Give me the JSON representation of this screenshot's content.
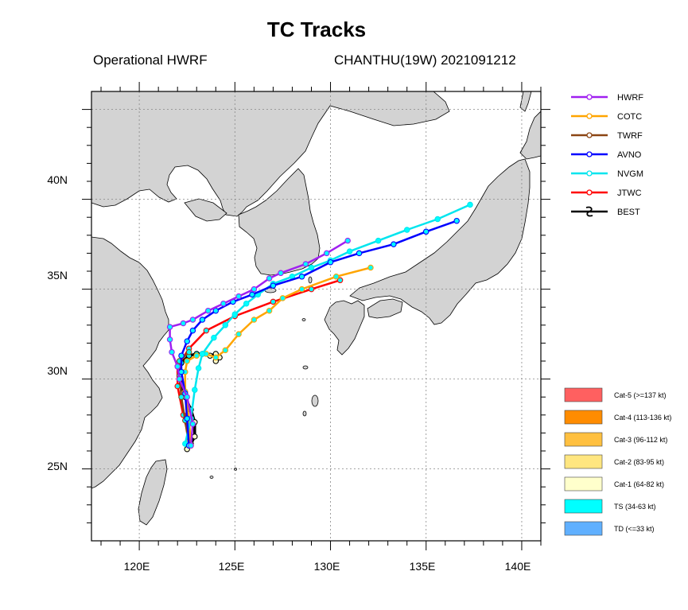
{
  "title": "TC Tracks",
  "subtitle_left": "Operational HWRF",
  "subtitle_right": "CHANTHU(19W) 2021091212",
  "map": {
    "lon_range": [
      117.5,
      141.0
    ],
    "lat_range": [
      21.0,
      46.0
    ],
    "x_tick_labels": [
      "120E",
      "125E",
      "130E",
      "135E",
      "140E"
    ],
    "y_tick_labels": [
      "25N",
      "30N",
      "35N",
      "40N"
    ],
    "grid": "dotted",
    "land_color": "#d3d3d3",
    "ocean_color": "#ffffff"
  },
  "legend": {
    "placement": "top-right",
    "tracks": [
      {
        "name": "HWRF",
        "color": "#a020f0"
      },
      {
        "name": "COTC",
        "color": "#ffa500"
      },
      {
        "name": "TWRF",
        "color": "#8b4513"
      },
      {
        "name": "AVNO",
        "color": "#0000ff"
      },
      {
        "name": "NVGM",
        "color": "#00e5ee"
      },
      {
        "name": "JTWC",
        "color": "#ff0000"
      },
      {
        "name": "BEST",
        "color": "#000000"
      }
    ]
  },
  "intensity_legend": [
    {
      "label": "Cat-5 (>=137 kt)",
      "color": "#ff6060"
    },
    {
      "label": "Cat-4 (113-136 kt)",
      "color": "#ff8c00"
    },
    {
      "label": "Cat-3 (96-112 kt)",
      "color": "#ffc040"
    },
    {
      "label": "Cat-2 (83-95 kt)",
      "color": "#ffe680"
    },
    {
      "label": "Cat-1 (64-82 kt)",
      "color": "#ffffcc"
    },
    {
      "label": "TS (34-63 kt)",
      "color": "#00ffff"
    },
    {
      "label": "TD (<=33 kt)",
      "color": "#60b0ff"
    }
  ],
  "tracks": {
    "HWRF": [
      [
        122.7,
        26.3
      ],
      [
        122.8,
        27.5
      ],
      [
        122.5,
        29.0
      ],
      [
        122.1,
        30.0
      ],
      [
        122.0,
        30.7
      ],
      [
        121.7,
        31.5
      ],
      [
        121.6,
        32.2
      ],
      [
        121.6,
        32.9
      ],
      [
        122.3,
        33.1
      ],
      [
        122.8,
        33.3
      ],
      [
        123.6,
        33.8
      ],
      [
        124.4,
        34.2
      ],
      [
        125.2,
        34.6
      ],
      [
        126.0,
        35.0
      ],
      [
        126.8,
        35.6
      ],
      [
        127.4,
        35.9
      ],
      [
        128.7,
        36.4
      ],
      [
        129.8,
        37.0
      ],
      [
        130.9,
        37.7
      ]
    ],
    "COTC": [
      [
        122.7,
        26.3
      ],
      [
        122.6,
        27.8
      ],
      [
        122.4,
        29.3
      ],
      [
        122.4,
        30.4
      ],
      [
        122.5,
        31.0
      ],
      [
        123.0,
        31.3
      ],
      [
        123.5,
        31.4
      ],
      [
        124.0,
        31.2
      ],
      [
        124.5,
        31.6
      ],
      [
        125.2,
        32.5
      ],
      [
        126.0,
        33.3
      ],
      [
        126.8,
        33.8
      ],
      [
        127.5,
        34.5
      ],
      [
        128.5,
        35.0
      ],
      [
        130.3,
        35.7
      ],
      [
        132.1,
        36.2
      ]
    ],
    "TWRF": [
      [
        122.6,
        26.3
      ],
      [
        122.4,
        27.7
      ],
      [
        122.2,
        29.0
      ],
      [
        122.1,
        30.2
      ],
      [
        122.1,
        31.0
      ],
      [
        122.6,
        31.5
      ]
    ],
    "AVNO": [
      [
        122.6,
        26.3
      ],
      [
        122.5,
        27.8
      ],
      [
        122.4,
        29.2
      ],
      [
        122.2,
        30.4
      ],
      [
        122.2,
        31.3
      ],
      [
        122.5,
        32.1
      ],
      [
        122.8,
        32.7
      ],
      [
        123.3,
        33.3
      ],
      [
        124.0,
        33.8
      ],
      [
        124.9,
        34.3
      ],
      [
        125.9,
        34.7
      ],
      [
        127.0,
        35.2
      ],
      [
        128.5,
        35.7
      ],
      [
        130.0,
        36.5
      ],
      [
        131.5,
        37.0
      ],
      [
        133.3,
        37.5
      ],
      [
        135.0,
        38.2
      ],
      [
        136.6,
        38.8
      ]
    ],
    "NVGM": [
      [
        122.4,
        26.4
      ],
      [
        122.7,
        27.8
      ],
      [
        122.9,
        29.4
      ],
      [
        123.1,
        30.6
      ],
      [
        123.3,
        31.4
      ],
      [
        123.9,
        32.3
      ],
      [
        124.5,
        33.0
      ],
      [
        125.0,
        33.6
      ],
      [
        125.6,
        34.2
      ],
      [
        126.2,
        34.7
      ],
      [
        127.0,
        35.3
      ],
      [
        128.0,
        35.7
      ],
      [
        129.0,
        36.2
      ],
      [
        130.0,
        36.6
      ],
      [
        131.0,
        37.1
      ],
      [
        132.5,
        37.7
      ],
      [
        134.0,
        38.3
      ],
      [
        135.6,
        38.9
      ],
      [
        137.3,
        39.7
      ]
    ],
    "JTWC": [
      [
        122.7,
        26.3
      ],
      [
        122.3,
        28.0
      ],
      [
        122.0,
        29.6
      ],
      [
        122.0,
        30.7
      ],
      [
        122.6,
        31.7
      ],
      [
        123.5,
        32.7
      ],
      [
        125.0,
        33.5
      ],
      [
        127.0,
        34.3
      ],
      [
        129.0,
        35.0
      ],
      [
        130.5,
        35.5
      ]
    ],
    "BEST": [
      [
        122.5,
        26.1
      ],
      [
        122.7,
        26.4
      ],
      [
        122.9,
        26.8
      ],
      [
        122.9,
        27.6
      ],
      [
        122.7,
        28.3
      ],
      [
        122.4,
        29.0
      ],
      [
        122.2,
        29.7
      ],
      [
        122.1,
        30.4
      ],
      [
        122.2,
        30.9
      ],
      [
        122.6,
        31.3
      ],
      [
        123.0,
        31.4
      ],
      [
        123.3,
        31.4
      ],
      [
        123.7,
        31.3
      ],
      [
        124.0,
        31.4
      ],
      [
        124.2,
        31.2
      ],
      [
        124.0,
        31.0
      ]
    ]
  }
}
